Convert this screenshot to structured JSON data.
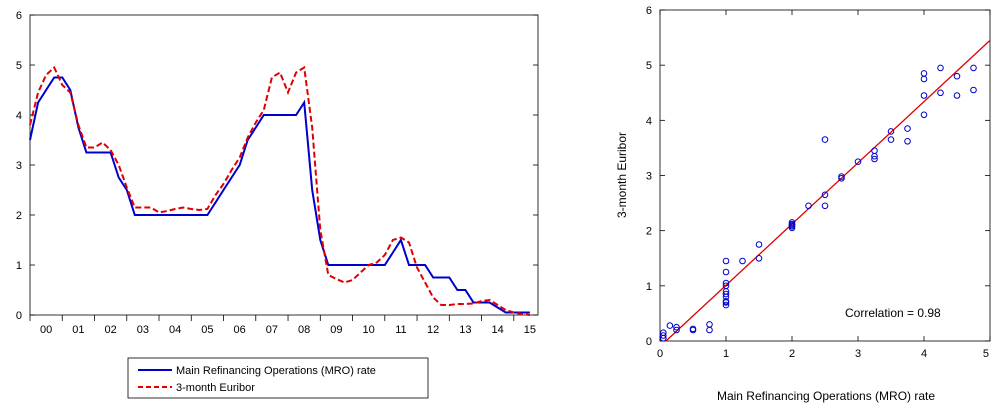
{
  "chart_data": [
    {
      "type": "line",
      "title": "",
      "xlabel": "",
      "ylabel": "",
      "ylim": [
        0,
        6
      ],
      "yticks": [
        0,
        1,
        2,
        3,
        4,
        5,
        6
      ],
      "xlim": [
        2000.0,
        2015.75
      ],
      "xtick_labels": [
        "00",
        "01",
        "02",
        "03",
        "04",
        "05",
        "06",
        "07",
        "08",
        "09",
        "10",
        "11",
        "12",
        "13",
        "14",
        "15"
      ],
      "grid": false,
      "legend": "bottom-center",
      "series": [
        {
          "name": "Main Refinancing Operations (MRO) rate",
          "color": "#0000cc",
          "style": "solid",
          "x": [
            2000.0,
            2000.25,
            2000.5,
            2000.75,
            2001.0,
            2001.25,
            2001.5,
            2001.75,
            2002.0,
            2002.25,
            2002.5,
            2002.75,
            2003.0,
            2003.25,
            2003.5,
            2003.75,
            2004.0,
            2004.25,
            2004.5,
            2004.75,
            2005.0,
            2005.25,
            2005.5,
            2005.75,
            2006.0,
            2006.25,
            2006.5,
            2006.75,
            2007.0,
            2007.25,
            2007.5,
            2007.75,
            2008.0,
            2008.25,
            2008.5,
            2008.75,
            2009.0,
            2009.25,
            2009.5,
            2009.75,
            2010.0,
            2010.25,
            2010.5,
            2010.75,
            2011.0,
            2011.25,
            2011.5,
            2011.75,
            2012.0,
            2012.25,
            2012.5,
            2012.75,
            2013.0,
            2013.25,
            2013.5,
            2013.75,
            2014.0,
            2014.25,
            2014.5,
            2014.75,
            2015.0,
            2015.25,
            2015.5
          ],
          "values": [
            3.5,
            4.25,
            4.5,
            4.75,
            4.75,
            4.5,
            3.75,
            3.25,
            3.25,
            3.25,
            3.25,
            2.75,
            2.5,
            2.0,
            2.0,
            2.0,
            2.0,
            2.0,
            2.0,
            2.0,
            2.0,
            2.0,
            2.0,
            2.25,
            2.5,
            2.75,
            3.0,
            3.5,
            3.75,
            4.0,
            4.0,
            4.0,
            4.0,
            4.0,
            4.25,
            2.5,
            1.5,
            1.0,
            1.0,
            1.0,
            1.0,
            1.0,
            1.0,
            1.0,
            1.0,
            1.25,
            1.5,
            1.0,
            1.0,
            1.0,
            0.75,
            0.75,
            0.75,
            0.5,
            0.5,
            0.25,
            0.25,
            0.25,
            0.15,
            0.05,
            0.05,
            0.05,
            0.05
          ]
        },
        {
          "name": "3-month Euribor",
          "color": "#e00000",
          "style": "dashed",
          "x": [
            2000.0,
            2000.25,
            2000.5,
            2000.75,
            2001.0,
            2001.25,
            2001.5,
            2001.75,
            2002.0,
            2002.25,
            2002.5,
            2002.75,
            2003.0,
            2003.25,
            2003.5,
            2003.75,
            2004.0,
            2004.25,
            2004.5,
            2004.75,
            2005.0,
            2005.25,
            2005.5,
            2005.75,
            2006.0,
            2006.25,
            2006.5,
            2006.75,
            2007.0,
            2007.25,
            2007.5,
            2007.75,
            2008.0,
            2008.25,
            2008.5,
            2008.75,
            2009.0,
            2009.25,
            2009.5,
            2009.75,
            2010.0,
            2010.25,
            2010.5,
            2010.75,
            2011.0,
            2011.25,
            2011.5,
            2011.75,
            2012.0,
            2012.25,
            2012.5,
            2012.75,
            2013.0,
            2013.25,
            2013.5,
            2013.75,
            2014.0,
            2014.25,
            2014.5,
            2014.75,
            2015.0,
            2015.25,
            2015.5
          ],
          "values": [
            3.8,
            4.45,
            4.8,
            4.95,
            4.6,
            4.45,
            3.8,
            3.35,
            3.35,
            3.45,
            3.3,
            3.0,
            2.55,
            2.15,
            2.15,
            2.15,
            2.05,
            2.08,
            2.12,
            2.15,
            2.12,
            2.1,
            2.12,
            2.4,
            2.62,
            2.9,
            3.15,
            3.55,
            3.85,
            4.1,
            4.75,
            4.85,
            4.45,
            4.85,
            4.95,
            3.75,
            1.7,
            0.8,
            0.72,
            0.65,
            0.7,
            0.85,
            1.0,
            1.05,
            1.2,
            1.5,
            1.55,
            1.45,
            0.95,
            0.65,
            0.35,
            0.2,
            0.2,
            0.22,
            0.22,
            0.23,
            0.28,
            0.3,
            0.2,
            0.1,
            0.05,
            0.02,
            0.0
          ]
        }
      ]
    },
    {
      "type": "scatter",
      "title": "",
      "xlabel": "Main Refinancing Operations (MRO) rate",
      "ylabel": "3-month Euribor",
      "xlim": [
        0,
        5
      ],
      "ylim": [
        0,
        6
      ],
      "xticks": [
        0,
        1,
        2,
        3,
        4,
        5
      ],
      "yticks": [
        0,
        1,
        2,
        3,
        4,
        5,
        6
      ],
      "grid": false,
      "annotation": "Correlation = 0.98",
      "marker_color": "#0000cc",
      "fit_line": {
        "color": "#e00000",
        "x": [
          0,
          5
        ],
        "y": [
          -0.1,
          5.45
        ]
      },
      "points": [
        [
          0.05,
          0.05
        ],
        [
          0.05,
          0.1
        ],
        [
          0.05,
          0.15
        ],
        [
          0.15,
          0.28
        ],
        [
          0.25,
          0.25
        ],
        [
          0.25,
          0.2
        ],
        [
          0.5,
          0.2
        ],
        [
          0.5,
          0.22
        ],
        [
          0.75,
          0.2
        ],
        [
          0.75,
          0.3
        ],
        [
          1.0,
          0.65
        ],
        [
          1.0,
          0.7
        ],
        [
          1.0,
          0.72
        ],
        [
          1.0,
          0.8
        ],
        [
          1.0,
          0.85
        ],
        [
          1.0,
          0.9
        ],
        [
          1.0,
          1.0
        ],
        [
          1.0,
          1.05
        ],
        [
          1.0,
          1.25
        ],
        [
          1.0,
          1.45
        ],
        [
          1.25,
          1.45
        ],
        [
          1.5,
          1.5
        ],
        [
          1.5,
          1.75
        ],
        [
          2.0,
          2.05
        ],
        [
          2.0,
          2.08
        ],
        [
          2.0,
          2.1
        ],
        [
          2.0,
          2.12
        ],
        [
          2.0,
          2.15
        ],
        [
          2.25,
          2.45
        ],
        [
          2.5,
          2.45
        ],
        [
          2.5,
          2.65
        ],
        [
          2.5,
          3.65
        ],
        [
          2.75,
          2.95
        ],
        [
          2.75,
          2.98
        ],
        [
          3.0,
          3.25
        ],
        [
          3.25,
          3.3
        ],
        [
          3.25,
          3.35
        ],
        [
          3.25,
          3.45
        ],
        [
          3.5,
          3.65
        ],
        [
          3.5,
          3.8
        ],
        [
          3.75,
          3.62
        ],
        [
          3.75,
          3.85
        ],
        [
          4.0,
          4.1
        ],
        [
          4.0,
          4.45
        ],
        [
          4.0,
          4.75
        ],
        [
          4.0,
          4.85
        ],
        [
          4.25,
          4.5
        ],
        [
          4.25,
          4.95
        ],
        [
          4.5,
          4.45
        ],
        [
          4.5,
          4.8
        ],
        [
          4.75,
          4.55
        ],
        [
          4.75,
          4.95
        ]
      ]
    }
  ]
}
